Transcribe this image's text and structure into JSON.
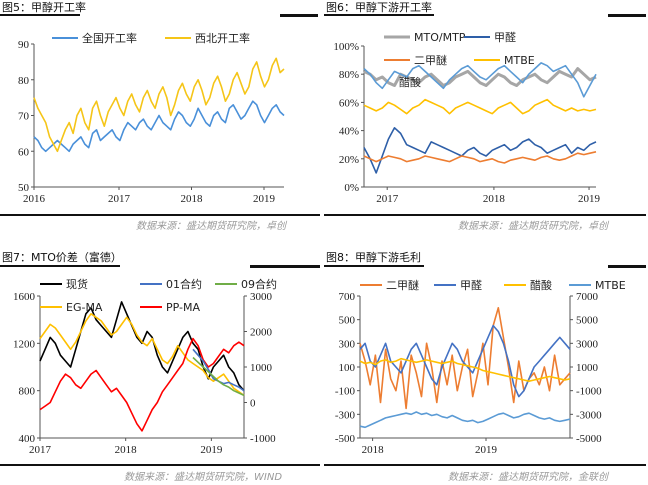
{
  "panels": [
    {
      "title": "图5：甲醇开工率",
      "source": "数据来源：盛达期货研究院，卓创",
      "chart_data": {
        "type": "line",
        "y_ticks": [
          "50",
          "60",
          "70",
          "80",
          "90"
        ],
        "ylim": [
          50,
          90
        ],
        "x_ticks": [
          "2016",
          "2017",
          "2018",
          "2019"
        ],
        "legend_loc": "top",
        "series": [
          {
            "name": "全国开工率",
            "color": "#4a90d9",
            "values": [
              64,
              63,
              61,
              60,
              61,
              62,
              63,
              62,
              61,
              60,
              62,
              63,
              64,
              62,
              61,
              65,
              66,
              63,
              64,
              65,
              66,
              64,
              63,
              66,
              68,
              67,
              66,
              68,
              69,
              67,
              66,
              68,
              70,
              68,
              67,
              66,
              69,
              71,
              70,
              68,
              67,
              69,
              72,
              70,
              68,
              67,
              70,
              71,
              69,
              68,
              72,
              73,
              71,
              69,
              70,
              72,
              74,
              73,
              70,
              68,
              70,
              72,
              73,
              71,
              70
            ]
          },
          {
            "name": "西北开工率",
            "color": "#f5c518",
            "values": [
              75,
              72,
              70,
              68,
              64,
              62,
              60,
              63,
              66,
              68,
              65,
              70,
              72,
              68,
              66,
              72,
              74,
              70,
              67,
              71,
              73,
              75,
              72,
              70,
              74,
              76,
              73,
              71,
              75,
              77,
              74,
              72,
              76,
              78,
              75,
              70,
              73,
              77,
              79,
              76,
              74,
              78,
              80,
              77,
              73,
              75,
              79,
              81,
              78,
              74,
              76,
              80,
              82,
              79,
              76,
              78,
              83,
              85,
              81,
              78,
              80,
              84,
              86,
              82,
              83
            ]
          }
        ]
      }
    },
    {
      "title": "图6：甲醇下游开工率",
      "source": "数据来源：盛达期货研究院，卓创",
      "chart_data": {
        "type": "line",
        "y_ticks": [
          "0%",
          "20%",
          "40%",
          "60%",
          "80%",
          "100%"
        ],
        "ylim": [
          0,
          100
        ],
        "x_ticks": [
          "2017",
          "2018",
          "2019"
        ],
        "legend_loc": "top",
        "series": [
          {
            "name": "MTO/MTP",
            "color": "#a6a6a6",
            "values": [
              82,
              80,
              76,
              78,
              74,
              72,
              80,
              78,
              76,
              74,
              78,
              80,
              76,
              72,
              74,
              78,
              80,
              82,
              78,
              74,
              72,
              76,
              80,
              78,
              74,
              72,
              76,
              78,
              80,
              76,
              74,
              78,
              82,
              80,
              78,
              84,
              80,
              76,
              78
            ]
          },
          {
            "name": "甲醛",
            "color": "#2e5fa8",
            "values": [
              28,
              20,
              10,
              22,
              34,
              42,
              38,
              30,
              28,
              26,
              24,
              32,
              30,
              28,
              26,
              24,
              22,
              26,
              28,
              24,
              22,
              26,
              28,
              30,
              26,
              28,
              32,
              34,
              30,
              28,
              24,
              26,
              28,
              30,
              24,
              28,
              26,
              30,
              32
            ]
          },
          {
            "name": "二甲醚",
            "color": "#ed7d31",
            "values": [
              22,
              20,
              18,
              20,
              22,
              21,
              20,
              18,
              19,
              20,
              22,
              21,
              20,
              19,
              18,
              20,
              22,
              21,
              20,
              18,
              19,
              20,
              18,
              17,
              19,
              20,
              21,
              20,
              19,
              21,
              22,
              20,
              19,
              20,
              22,
              24,
              23,
              24,
              25
            ]
          },
          {
            "name": "MTBE",
            "color": "#ffc000",
            "values": [
              58,
              56,
              54,
              56,
              60,
              58,
              55,
              52,
              56,
              58,
              62,
              60,
              58,
              56,
              52,
              56,
              58,
              60,
              58,
              56,
              54,
              52,
              56,
              58,
              60,
              56,
              52,
              54,
              58,
              60,
              62,
              58,
              56,
              54,
              56,
              54,
              55,
              54,
              55
            ]
          },
          {
            "name": "醋酸",
            "color": "#5b9bd5",
            "values": [
              84,
              80,
              74,
              70,
              76,
              82,
              80,
              78,
              84,
              86,
              82,
              78,
              74,
              70,
              76,
              80,
              84,
              86,
              82,
              78,
              76,
              80,
              84,
              86,
              82,
              78,
              74,
              80,
              84,
              88,
              86,
              82,
              84,
              86,
              80,
              74,
              64,
              72,
              80
            ]
          }
        ]
      }
    },
    {
      "title": "图7：MTO价差（富德）",
      "source": "数据来源：盛达期货研究院，WIND",
      "chart_data": {
        "type": "line",
        "y_ticks": [
          "400",
          "800",
          "1200",
          "1600"
        ],
        "ylim": [
          400,
          1600
        ],
        "y2_ticks": [
          "-1000",
          "0",
          "1000",
          "2000",
          "3000"
        ],
        "y2lim": [
          -1000,
          3000
        ],
        "x_ticks": [
          "2017",
          "2018",
          "2019"
        ],
        "legend_loc": "top",
        "series": [
          {
            "name": "现货",
            "color": "#000000",
            "axis": "left",
            "values": [
              1050,
              1150,
              1250,
              1200,
              1100,
              1050,
              1000,
              1150,
              1300,
              1450,
              1500,
              1400,
              1350,
              1300,
              1250,
              1400,
              1550,
              1450,
              1350,
              1250,
              1200,
              1300,
              1250,
              1100,
              1000,
              950,
              1050,
              1150,
              1250,
              1300,
              1200,
              1150,
              1000,
              900,
              1000,
              1050,
              1100,
              1000,
              950,
              850,
              800
            ]
          },
          {
            "name": "01合约",
            "color": "#4472c4",
            "axis": "right",
            "values": []
          },
          {
            "name": "09合约",
            "color": "#70ad47",
            "axis": "right",
            "values": []
          },
          {
            "name": "EG-MA",
            "color": "#ffc000",
            "axis": "right",
            "values": [
              1800,
              2000,
              2200,
              2100,
              1900,
              1700,
              1500,
              1700,
              2000,
              2300,
              2500,
              2400,
              2300,
              2100,
              1900,
              2000,
              2200,
              2400,
              2200,
              1900,
              1700,
              1600,
              1800,
              1500,
              1200,
              1100,
              1300,
              1600,
              1400,
              1200,
              1100,
              1000,
              900,
              700,
              600,
              700,
              800,
              600,
              400,
              300,
              200
            ]
          },
          {
            "name": "PP-MA",
            "color": "#ff0000",
            "axis": "right",
            "values": [
              -200,
              -100,
              0,
              300,
              600,
              800,
              700,
              500,
              400,
              600,
              800,
              900,
              700,
              500,
              300,
              400,
              200,
              0,
              -300,
              -600,
              -800,
              -500,
              -200,
              0,
              300,
              500,
              700,
              900,
              1100,
              1500,
              1800,
              1600,
              1200,
              1000,
              1100,
              1300,
              1500,
              1400,
              1600,
              1700,
              1600
            ]
          },
          {
            "name": "01合约",
            "color": "#4472c4",
            "axis": "left",
            "segment_start": 30,
            "values": [
              1150,
              1100,
              1050,
              980,
              900,
              880,
              860,
              870,
              850,
              830,
              800
            ]
          },
          {
            "name": "09合约",
            "color": "#70ad47",
            "axis": "left",
            "segment_start": 30,
            "values": [
              1080,
              1040,
              1000,
              960,
              920,
              880,
              850,
              830,
              800,
              780,
              760
            ]
          }
        ]
      }
    },
    {
      "title": "图8：甲醇下游毛利",
      "source": "数据来源：盛达期货研究院，金联创",
      "chart_data": {
        "type": "line",
        "y_ticks": [
          "-500",
          "-300",
          "-100",
          "100",
          "300",
          "500",
          "700"
        ],
        "ylim": [
          -500,
          700
        ],
        "y2_ticks": [
          "-5000",
          "-3000",
          "-1000",
          "1000",
          "3000",
          "5000",
          "7000"
        ],
        "y2lim": [
          -5000,
          7000
        ],
        "x_ticks": [
          "2018",
          "2019"
        ],
        "legend_loc": "top",
        "series": [
          {
            "name": "二甲醚",
            "color": "#ed7d31",
            "axis": "left",
            "values": [
              300,
              150,
              -50,
              200,
              -200,
              250,
              0,
              -100,
              150,
              -250,
              200,
              50,
              -150,
              300,
              100,
              -200,
              150,
              -50,
              200,
              -100,
              100,
              250,
              -150,
              50,
              300,
              -50,
              450,
              600,
              350,
              100,
              -200,
              150,
              -100,
              0,
              50,
              -50,
              100,
              -100,
              200,
              -50,
              0,
              50
            ]
          },
          {
            "name": "甲醛",
            "color": "#4472c4",
            "axis": "left",
            "values": [
              250,
              300,
              150,
              100,
              200,
              300,
              150,
              100,
              50,
              150,
              250,
              300,
              200,
              100,
              0,
              -50,
              100,
              200,
              300,
              250,
              150,
              100,
              50,
              150,
              250,
              350,
              450,
              400,
              300,
              150,
              -50,
              -150,
              -100,
              0,
              100,
              150,
              200,
              250,
              300,
              350,
              300,
              250
            ]
          },
          {
            "name": "醋酸",
            "color": "#ffc000",
            "axis": "right",
            "values": [
              1500,
              1300,
              1400,
              1200,
              1500,
              1600,
              1400,
              1500,
              1700,
              1600,
              1500,
              1400,
              1500,
              1600,
              1500,
              1400,
              1300,
              1400,
              1500,
              1300,
              1200,
              1100,
              1000,
              900,
              700,
              600,
              500,
              400,
              300,
              200,
              100,
              0,
              -100,
              -200,
              -100,
              0,
              100,
              200,
              100,
              0,
              -100,
              0
            ]
          },
          {
            "name": "MTBE",
            "color": "#5b9bd5",
            "axis": "right",
            "values": [
              -4000,
              -4100,
              -3900,
              -3700,
              -3500,
              -3300,
              -3200,
              -3100,
              -3000,
              -2900,
              -3000,
              -2800,
              -3000,
              -2900,
              -3100,
              -3000,
              -3200,
              -3300,
              -3100,
              -3300,
              -3500,
              -3600,
              -3500,
              -3700,
              -3600,
              -3400,
              -3200,
              -3000,
              -2900,
              -3100,
              -3300,
              -3200,
              -3000,
              -2900,
              -3100,
              -3300,
              -3400,
              -3300,
              -3500,
              -3600,
              -3500,
              -3400
            ]
          }
        ]
      }
    }
  ]
}
